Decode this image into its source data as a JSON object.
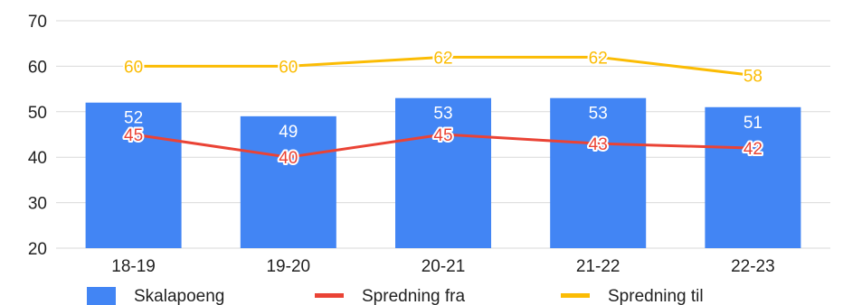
{
  "chart_data": {
    "type": "bar",
    "categories": [
      "18-19",
      "19-20",
      "20-21",
      "21-22",
      "22-23"
    ],
    "ylim": [
      20,
      70
    ],
    "yticks": [
      20,
      30,
      40,
      50,
      60,
      70
    ],
    "grid": true,
    "legend_position": "bottom",
    "series": [
      {
        "name": "Skalapoeng",
        "kind": "bar",
        "color": "#4285f4",
        "values": [
          52,
          49,
          53,
          53,
          51
        ]
      },
      {
        "name": "Spredning fra",
        "kind": "line",
        "color": "#ea4335",
        "values": [
          45,
          40,
          45,
          43,
          42
        ]
      },
      {
        "name": "Spredning til",
        "kind": "line",
        "color": "#fbbc04",
        "values": [
          60,
          60,
          62,
          62,
          58
        ]
      }
    ]
  }
}
